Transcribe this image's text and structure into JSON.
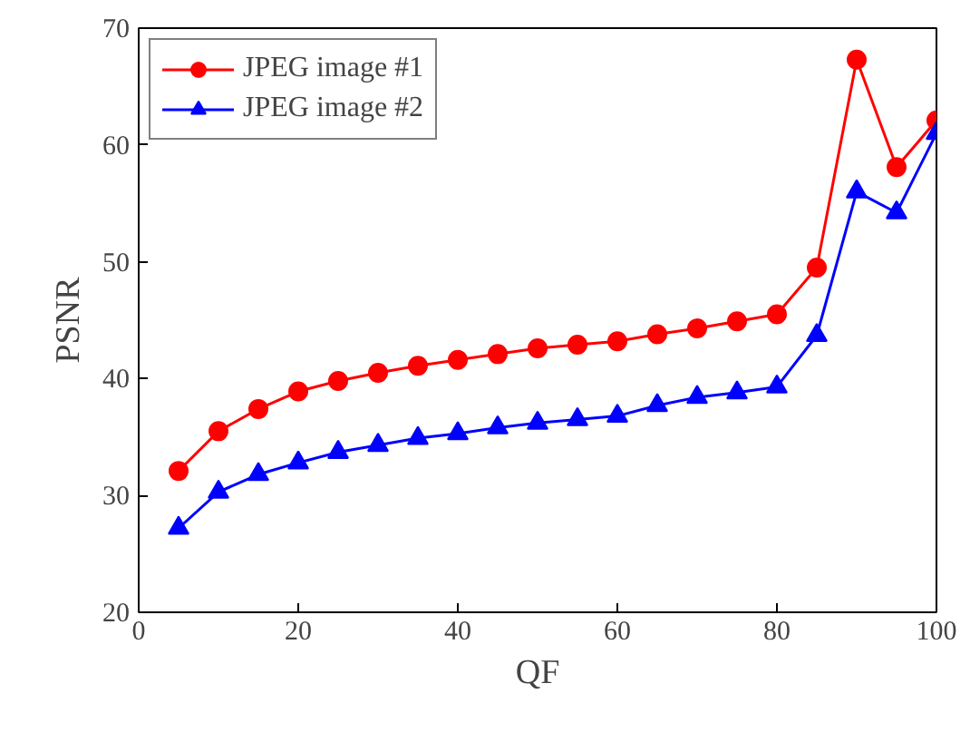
{
  "chart_data": {
    "type": "line",
    "xlabel": "QF",
    "ylabel": "PSNR",
    "x": [
      5,
      10,
      15,
      20,
      25,
      30,
      35,
      40,
      45,
      50,
      55,
      60,
      65,
      70,
      75,
      80,
      85,
      90,
      95,
      100
    ],
    "series": [
      {
        "name": "JPEG image #1",
        "color": "#ff0000",
        "marker": "circle",
        "values": [
          32.1,
          35.5,
          37.4,
          38.9,
          39.8,
          40.5,
          41.1,
          41.6,
          42.1,
          42.6,
          42.9,
          43.2,
          43.8,
          44.3,
          44.9,
          45.5,
          49.5,
          67.3,
          58.1,
          62.1
        ]
      },
      {
        "name": "JPEG image #2",
        "color": "#0000ff",
        "marker": "triangle",
        "values": [
          27.2,
          30.3,
          31.8,
          32.8,
          33.7,
          34.3,
          34.9,
          35.3,
          35.8,
          36.2,
          36.5,
          36.8,
          37.7,
          38.4,
          38.8,
          39.3,
          43.7,
          56.0,
          54.2,
          61.0
        ]
      }
    ],
    "xlim": [
      0,
      100
    ],
    "xticks": [
      0,
      20,
      40,
      60,
      80,
      100
    ],
    "ylim": [
      20,
      70
    ],
    "yticks": [
      20,
      30,
      40,
      50,
      60,
      70
    ],
    "grid": false,
    "legend": "top left",
    "line_style": "solid"
  }
}
